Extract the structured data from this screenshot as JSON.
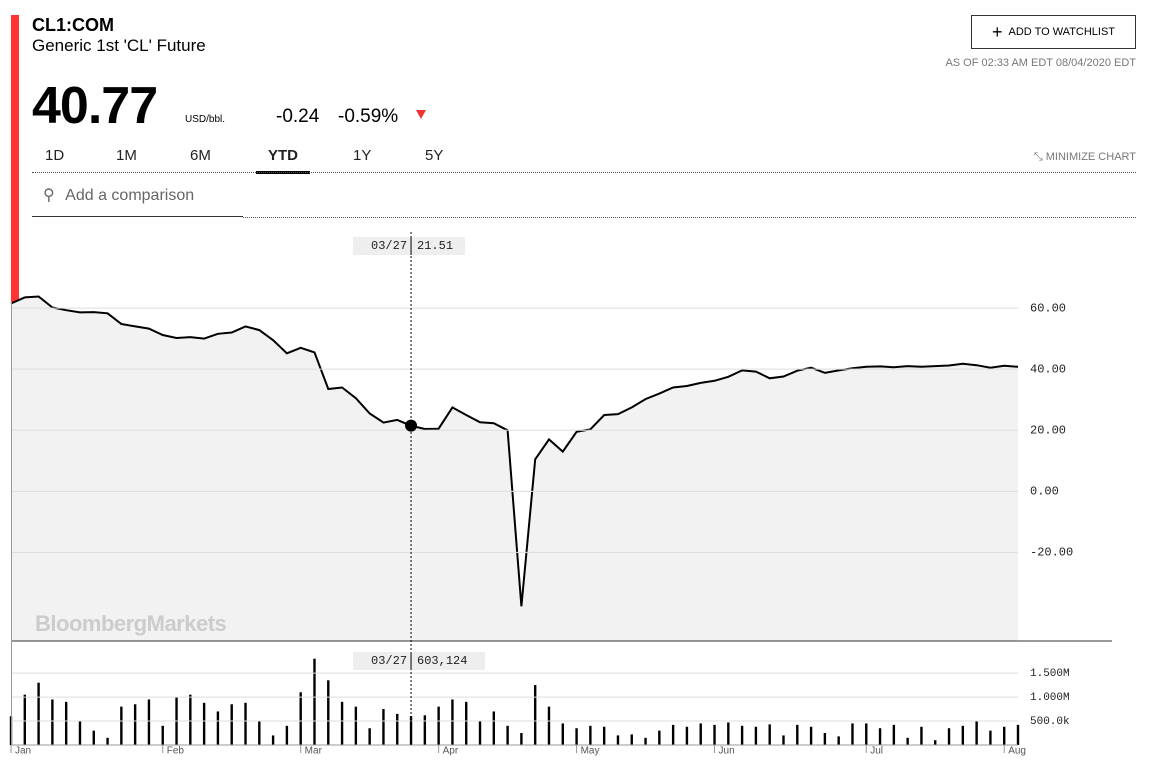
{
  "header": {
    "symbol": "CL1:COM",
    "name": "Generic 1st 'CL' Future",
    "price": "40.77",
    "unit": "USD/bbl.",
    "change": "-0.24",
    "change_pct": "-0.59%",
    "watchlist": "ADD TO WATCHLIST",
    "as_of": "AS OF 02:33 AM EDT 08/04/2020 EDT",
    "tabs": [
      {
        "label": "1D",
        "active": false
      },
      {
        "label": "1M",
        "active": false
      },
      {
        "label": "6M",
        "active": false
      },
      {
        "label": "YTD",
        "active": true
      },
      {
        "label": "1Y",
        "active": false
      },
      {
        "label": "5Y",
        "active": false
      }
    ],
    "minimize": "MINIMIZE CHART",
    "comparison": "Add a comparison",
    "watermark": "BloombergMarkets"
  },
  "crosshair": {
    "date": "03/27",
    "price": 21.51,
    "volume": {
      "value": 603124,
      "label": "603,124"
    }
  },
  "chart_data": [
    {
      "type": "line",
      "color": "#000000",
      "fill": "#f2f2f2",
      "ylim": [
        -49,
        89.5
      ],
      "yticks": [
        {
          "value": -20,
          "label": "-20.00"
        },
        {
          "value": 0,
          "label": "0.00"
        },
        {
          "value": 20,
          "label": "20.00"
        },
        {
          "value": 40,
          "label": "40.00"
        },
        {
          "value": 60,
          "label": "60.00"
        }
      ],
      "grid": true,
      "values": [
        61.5,
        63.5,
        63.8,
        60.2,
        59.3,
        58.6,
        58.7,
        58.3,
        54.8,
        54,
        53.3,
        51.2,
        50.2,
        50.5,
        50,
        51.6,
        52,
        54,
        52.8,
        49.5,
        45.2,
        47,
        45.5,
        33.5,
        34,
        30.5,
        25.5,
        22.5,
        23.4,
        21.51,
        20.4,
        20.5,
        27.5,
        25,
        22.6,
        22.3,
        20,
        -37.63,
        10.5,
        17,
        13,
        19.5,
        20.3,
        25,
        25.3,
        27.5,
        30.2,
        32,
        34,
        34.5,
        35.5,
        36.2,
        37.5,
        39.6,
        39.2,
        37,
        37.6,
        39.5,
        40.5,
        38.8,
        39.6,
        40.3,
        40.8,
        40.9,
        40.6,
        41,
        40.8,
        41,
        41.2,
        41.8,
        41.3,
        40.5,
        41.1,
        40.77
      ]
    },
    {
      "type": "bar",
      "color": "#000000",
      "ylim": [
        0,
        2170000
      ],
      "yticks": [
        {
          "value": 500000,
          "label": "500.0k"
        },
        {
          "value": 1000000,
          "label": "1.000M"
        },
        {
          "value": 1500000,
          "label": "1.500M"
        }
      ],
      "grid": true,
      "categories": [
        "Jan",
        null,
        null,
        null,
        null,
        null,
        null,
        null,
        null,
        null,
        null,
        "Feb",
        null,
        null,
        null,
        null,
        null,
        null,
        null,
        null,
        null,
        "Mar",
        null,
        null,
        null,
        null,
        null,
        null,
        null,
        null,
        null,
        "Apr",
        null,
        null,
        null,
        null,
        null,
        null,
        null,
        null,
        null,
        "May",
        null,
        null,
        null,
        null,
        null,
        null,
        null,
        null,
        null,
        "Jun",
        null,
        null,
        null,
        null,
        null,
        null,
        null,
        null,
        null,
        null,
        "Jul",
        null,
        null,
        null,
        null,
        null,
        null,
        null,
        null,
        null,
        "Aug",
        null
      ],
      "values": [
        600000,
        1050000,
        1300000,
        950000,
        900000,
        500000,
        300000,
        150000,
        800000,
        850000,
        950000,
        400000,
        1000000,
        1050000,
        880000,
        700000,
        850000,
        880000,
        500000,
        200000,
        400000,
        1100000,
        1800000,
        1350000,
        900000,
        800000,
        350000,
        750000,
        650000,
        603124,
        620000,
        800000,
        950000,
        900000,
        500000,
        700000,
        400000,
        250000,
        1250000,
        800000,
        450000,
        350000,
        400000,
        380000,
        200000,
        220000,
        150000,
        300000,
        420000,
        380000,
        450000,
        420000,
        470000,
        400000,
        380000,
        430000,
        200000,
        420000,
        380000,
        250000,
        180000,
        450000,
        450000,
        350000,
        420000,
        150000,
        380000,
        100000,
        350000,
        400000,
        500000,
        300000,
        380000,
        420000
      ]
    }
  ]
}
